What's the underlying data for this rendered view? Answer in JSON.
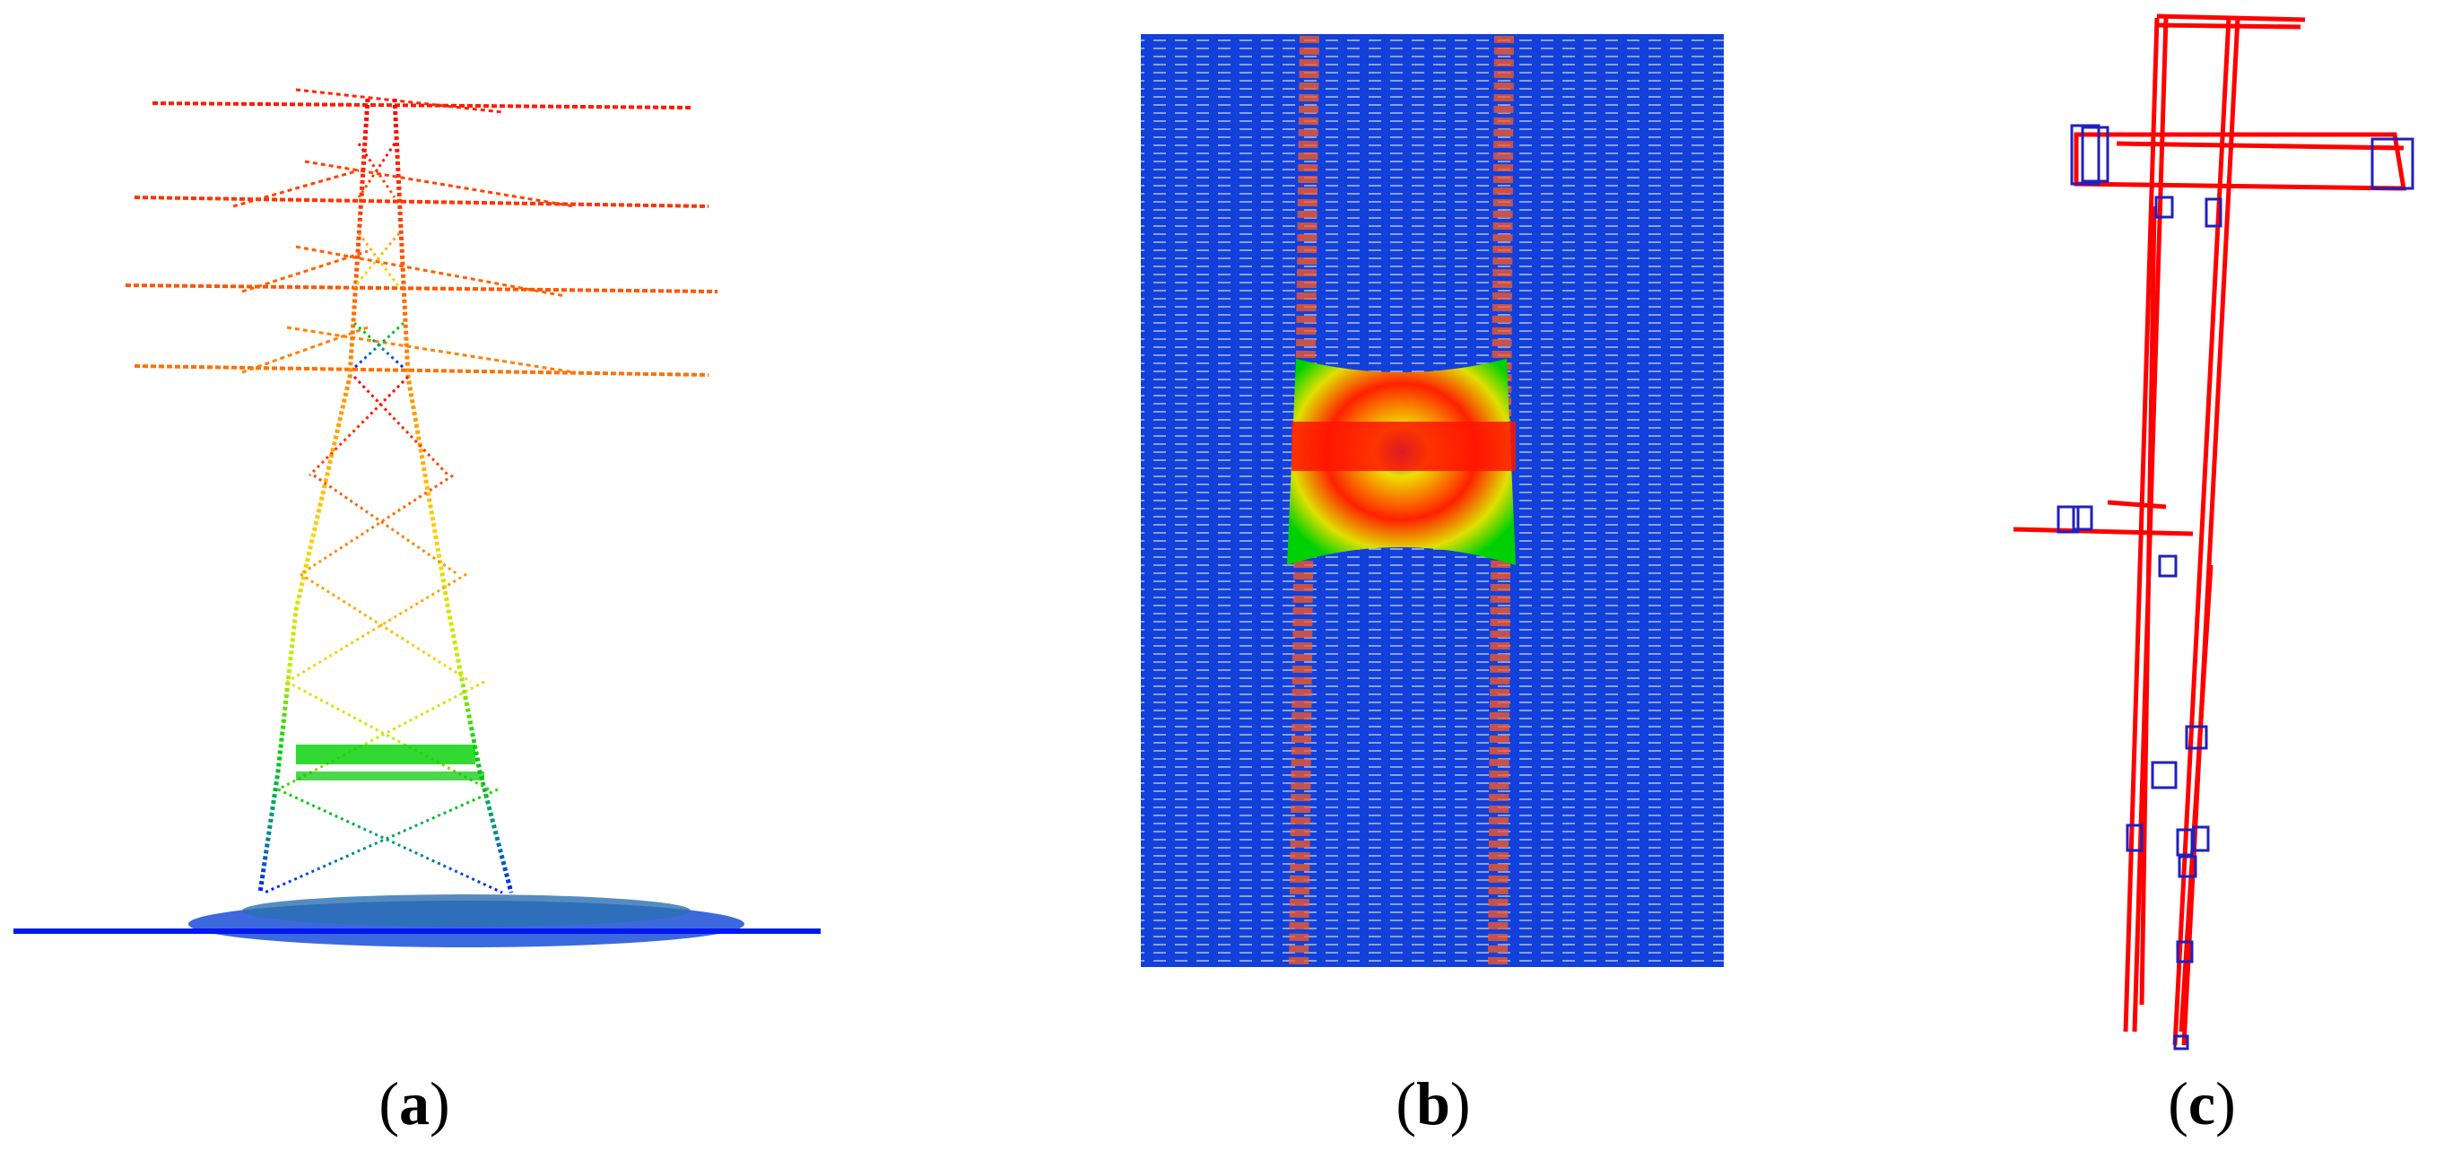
{
  "panels": [
    {
      "id": "a",
      "caption_open": "(",
      "caption_letter": "a",
      "caption_close": ")",
      "view": "tower-point-cloud-side",
      "color_scale": [
        "#0000ff",
        "#00a0a0",
        "#00e000",
        "#ffff00",
        "#ff8000",
        "#ff0000"
      ]
    },
    {
      "id": "b",
      "caption_open": "(",
      "caption_letter": "b",
      "caption_close": ")",
      "view": "tower-point-cloud-top"
    },
    {
      "id": "c",
      "caption_open": "(",
      "caption_letter": "c",
      "caption_close": ")",
      "view": "tower-skeleton-model",
      "line_color": "#ff0000",
      "box_color": "#2020c0"
    }
  ]
}
